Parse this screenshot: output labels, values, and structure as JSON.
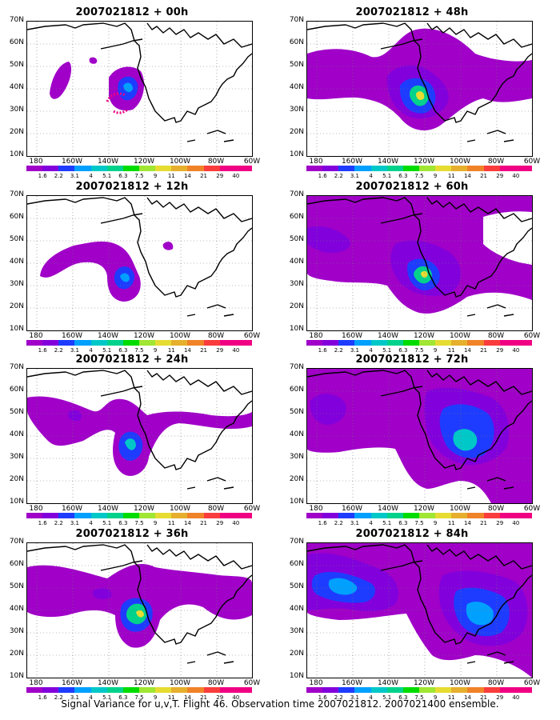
{
  "figure": {
    "caption": "Signal Variance for u,v,T. Flight 46. Observation time 2007021812. 2007021400 ensemble."
  },
  "map": {
    "lat_labels": [
      "70N",
      "60N",
      "50N",
      "40N",
      "30N",
      "20N",
      "10N"
    ],
    "lon_labels": [
      "180",
      "160W",
      "140W",
      "120W",
      "100W",
      "80W",
      "60W"
    ],
    "lon_range": [
      170,
      60
    ],
    "lat_range": [
      10,
      70
    ]
  },
  "colorbar": {
    "levels": [
      "1.6",
      "2.2",
      "3.1",
      "4",
      "5.1",
      "6.3",
      "7.5",
      "9",
      "11",
      "14",
      "21",
      "29",
      "40"
    ],
    "colors": [
      "#a000c8",
      "#8200dc",
      "#1e3cff",
      "#00a0ff",
      "#00c8c8",
      "#00d28c",
      "#00dc00",
      "#a0e632",
      "#e6dc32",
      "#e6af2d",
      "#f08228",
      "#fa3c3c",
      "#f00082"
    ]
  },
  "panels": [
    {
      "id": "p00",
      "title": "2007021812 + 00h"
    },
    {
      "id": "p12",
      "title": "2007021812 + 12h"
    },
    {
      "id": "p24",
      "title": "2007021812 + 24h"
    },
    {
      "id": "p36",
      "title": "2007021812 + 36h"
    },
    {
      "id": "p48",
      "title": "2007021812 + 48h"
    },
    {
      "id": "p60",
      "title": "2007021812 + 60h"
    },
    {
      "id": "p72",
      "title": "2007021812 + 72h"
    },
    {
      "id": "p84",
      "title": "2007021812 + 84h"
    }
  ]
}
